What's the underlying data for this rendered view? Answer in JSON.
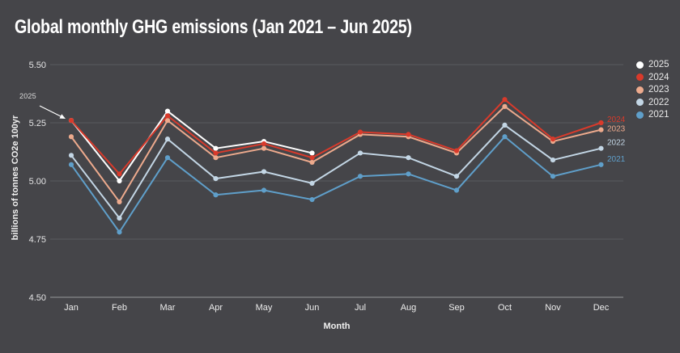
{
  "page": {
    "background": "#454549"
  },
  "chart": {
    "title": "Global monthly GHG emissions (Jan 2021 – Jun 2025)",
    "xlabel": "Month",
    "ylabel": "billions of tonnes CO2e 100yr",
    "annotation": {
      "text": "2025"
    }
  },
  "legend": {
    "items": [
      {
        "label": "2025",
        "color": "#ffffff"
      },
      {
        "label": "2024",
        "color": "#d93a2b"
      },
      {
        "label": "2023",
        "color": "#edaa8d"
      },
      {
        "label": "2022",
        "color": "#c3d6e5"
      },
      {
        "label": "2021",
        "color": "#5f9fca"
      }
    ]
  },
  "chart_data": {
    "type": "line",
    "title": "Global monthly GHG emissions (Jan 2021 – Jun 2025)",
    "xlabel": "Month",
    "ylabel": "billions of tonnes CO2e 100yr",
    "categories": [
      "Jan",
      "Feb",
      "Mar",
      "Apr",
      "May",
      "Jun",
      "Jul",
      "Aug",
      "Sep",
      "Oct",
      "Nov",
      "Dec"
    ],
    "y_ticks": [
      "5.50",
      "5.25",
      "5.00",
      "4.75",
      "4.50"
    ],
    "ylim": [
      4.5,
      5.5
    ],
    "grid": true,
    "legend_position": "right",
    "annotation": {
      "text": "2025",
      "target_series": "2025",
      "target_category": "Jan"
    },
    "series": [
      {
        "name": "2021",
        "color": "#5f9fca",
        "end_label": true,
        "values": [
          5.07,
          4.78,
          5.1,
          4.94,
          4.96,
          4.92,
          5.02,
          5.03,
          4.96,
          5.19,
          5.02,
          5.07
        ]
      },
      {
        "name": "2022",
        "color": "#c3d6e5",
        "end_label": true,
        "values": [
          5.11,
          4.84,
          5.18,
          5.01,
          5.04,
          4.99,
          5.12,
          5.1,
          5.02,
          5.24,
          5.09,
          5.14
        ]
      },
      {
        "name": "2023",
        "color": "#edaa8d",
        "end_label": true,
        "values": [
          5.19,
          4.91,
          5.26,
          5.1,
          5.14,
          5.08,
          5.2,
          5.19,
          5.12,
          5.32,
          5.17,
          5.22
        ]
      },
      {
        "name": "2025",
        "color": "#ffffff",
        "end_label": false,
        "values": [
          5.26,
          5.0,
          5.3,
          5.14,
          5.17,
          5.12,
          null,
          null,
          null,
          null,
          null,
          null
        ]
      },
      {
        "name": "2024",
        "color": "#d93a2b",
        "end_label": true,
        "values": [
          5.26,
          5.03,
          5.28,
          5.12,
          5.16,
          5.1,
          5.21,
          5.2,
          5.13,
          5.35,
          5.18,
          5.25
        ]
      }
    ]
  }
}
